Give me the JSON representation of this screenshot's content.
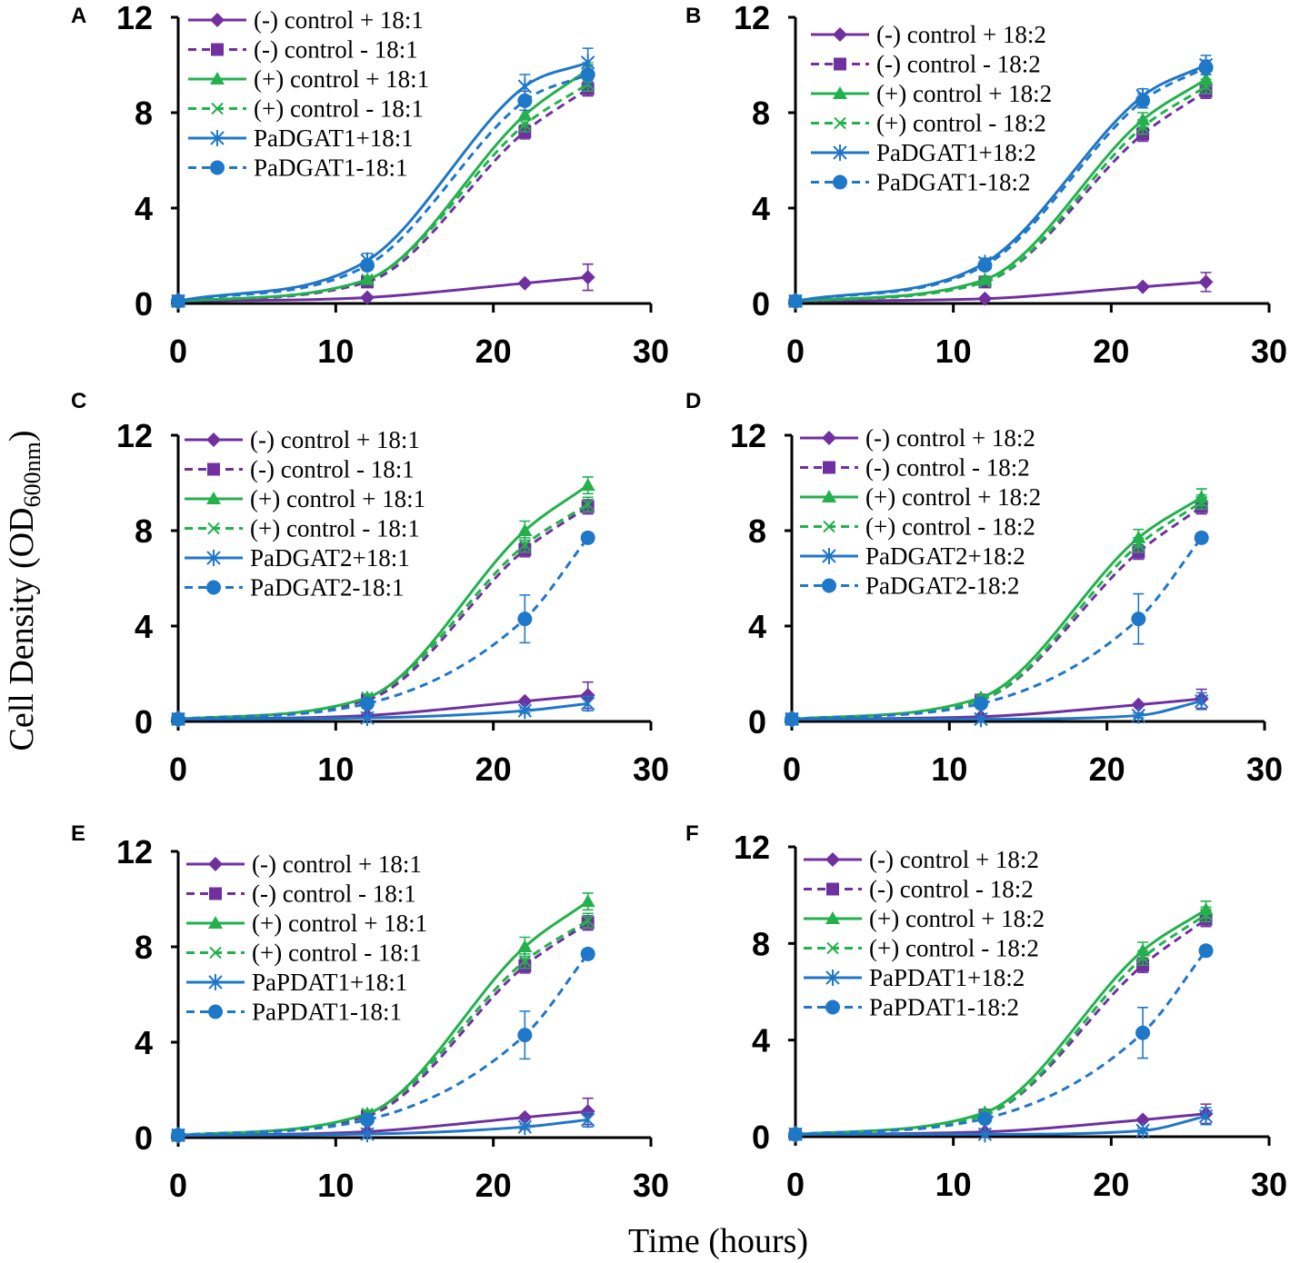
{
  "figure": {
    "ylabel_main": "Cell Density (OD",
    "ylabel_sub": "600nm",
    "ylabel_close": ")",
    "xlabel": "Time (hours)"
  },
  "colors": {
    "purple": "#7030A0",
    "green": "#22B14C",
    "blue": "#1F77C8"
  },
  "chart_data": [
    {
      "type": "line",
      "panel": "A",
      "xlim": [
        0,
        30
      ],
      "ylim": [
        0,
        12
      ],
      "xticks": [
        0,
        10,
        20,
        30
      ],
      "yticks": [
        0,
        4,
        8,
        12
      ],
      "x": [
        0,
        12,
        22,
        26
      ],
      "series": [
        {
          "name": "(-) control + 18:1",
          "color": "purple",
          "dash": false,
          "marker": "diamond",
          "values": [
            0.1,
            0.25,
            0.85,
            1.1
          ],
          "err": [
            0,
            0,
            0,
            0.55
          ]
        },
        {
          "name": "(-) control - 18:1",
          "color": "purple",
          "dash": true,
          "marker": "square",
          "values": [
            0.1,
            0.9,
            7.2,
            9.0
          ],
          "err": [
            0,
            0,
            0.3,
            0.3
          ]
        },
        {
          "name": "(+) control + 18:1",
          "color": "green",
          "dash": false,
          "marker": "triangle",
          "values": [
            0.1,
            1.0,
            7.9,
            9.8
          ],
          "err": [
            0,
            0,
            0.4,
            0.3
          ]
        },
        {
          "name": "(+) control - 18:1",
          "color": "green",
          "dash": true,
          "marker": "x",
          "values": [
            0.1,
            1.0,
            7.5,
            9.2
          ],
          "err": [
            0,
            0,
            0.3,
            0.3
          ]
        },
        {
          "name": "PaDGAT1+18:1",
          "color": "blue",
          "dash": false,
          "marker": "star",
          "values": [
            0.1,
            1.8,
            9.1,
            10.1
          ],
          "err": [
            0,
            0.3,
            0.5,
            0.6
          ]
        },
        {
          "name": "PaDGAT1-18:1",
          "color": "blue",
          "dash": true,
          "marker": "circle",
          "values": [
            0.1,
            1.6,
            8.5,
            9.6
          ],
          "err": [
            0,
            0.2,
            0.4,
            0.4
          ]
        }
      ]
    },
    {
      "type": "line",
      "panel": "B",
      "xlim": [
        0,
        30
      ],
      "ylim": [
        0,
        12
      ],
      "xticks": [
        0,
        10,
        20,
        30
      ],
      "yticks": [
        0,
        4,
        8,
        12
      ],
      "x": [
        0,
        12,
        22,
        26
      ],
      "series": [
        {
          "name": "(-) control + 18:2",
          "color": "purple",
          "dash": false,
          "marker": "diamond",
          "values": [
            0.1,
            0.2,
            0.7,
            0.9
          ],
          "err": [
            0,
            0,
            0,
            0.4
          ]
        },
        {
          "name": "(-) control - 18:2",
          "color": "purple",
          "dash": true,
          "marker": "square",
          "values": [
            0.1,
            0.9,
            7.1,
            8.9
          ],
          "err": [
            0,
            0,
            0.3,
            0.3
          ]
        },
        {
          "name": "(+) control + 18:2",
          "color": "green",
          "dash": false,
          "marker": "triangle",
          "values": [
            0.1,
            1.0,
            7.7,
            9.4
          ],
          "err": [
            0,
            0,
            0.3,
            0.3
          ]
        },
        {
          "name": "(+) control - 18:2",
          "color": "green",
          "dash": true,
          "marker": "x",
          "values": [
            0.1,
            0.9,
            7.4,
            9.1
          ],
          "err": [
            0,
            0,
            0.3,
            0.3
          ]
        },
        {
          "name": "PaDGAT1+18:2",
          "color": "blue",
          "dash": false,
          "marker": "star",
          "values": [
            0.1,
            1.7,
            8.7,
            10.0
          ],
          "err": [
            0,
            0.2,
            0.3,
            0.4
          ]
        },
        {
          "name": "PaDGAT1-18:2",
          "color": "blue",
          "dash": true,
          "marker": "circle",
          "values": [
            0.1,
            1.6,
            8.5,
            9.9
          ],
          "err": [
            0,
            0.2,
            0.3,
            0.3
          ]
        }
      ]
    },
    {
      "type": "line",
      "panel": "C",
      "xlim": [
        0,
        30
      ],
      "ylim": [
        0,
        12
      ],
      "xticks": [
        0,
        10,
        20,
        30
      ],
      "yticks": [
        0,
        4,
        8,
        12
      ],
      "x": [
        0,
        12,
        22,
        26
      ],
      "series": [
        {
          "name": "(-) control + 18:1",
          "color": "purple",
          "dash": false,
          "marker": "diamond",
          "values": [
            0.1,
            0.25,
            0.85,
            1.1
          ],
          "err": [
            0,
            0,
            0,
            0.55
          ]
        },
        {
          "name": "(-) control - 18:1",
          "color": "purple",
          "dash": true,
          "marker": "square",
          "values": [
            0.1,
            0.9,
            7.2,
            9.0
          ],
          "err": [
            0,
            0,
            0.3,
            0.3
          ]
        },
        {
          "name": "(+) control + 18:1",
          "color": "green",
          "dash": false,
          "marker": "triangle",
          "values": [
            0.1,
            1.0,
            8.0,
            9.9
          ],
          "err": [
            0,
            0,
            0.4,
            0.35
          ]
        },
        {
          "name": "(+) control - 18:1",
          "color": "green",
          "dash": true,
          "marker": "x",
          "values": [
            0.1,
            1.0,
            7.4,
            9.1
          ],
          "err": [
            0,
            0,
            0.3,
            0.3
          ]
        },
        {
          "name": "PaDGAT2+18:1",
          "color": "blue",
          "dash": false,
          "marker": "star",
          "values": [
            0.1,
            0.15,
            0.45,
            0.75
          ],
          "err": [
            0,
            0,
            0.1,
            0.3
          ]
        },
        {
          "name": "PaDGAT2-18:1",
          "color": "blue",
          "dash": true,
          "marker": "circle",
          "values": [
            0.1,
            0.75,
            4.3,
            7.7
          ],
          "err": [
            0,
            0.1,
            1.0,
            0.2
          ]
        }
      ]
    },
    {
      "type": "line",
      "panel": "D",
      "xlim": [
        0,
        30
      ],
      "ylim": [
        0,
        12
      ],
      "xticks": [
        0,
        10,
        20,
        30
      ],
      "yticks": [
        0,
        4,
        8,
        12
      ],
      "x": [
        0,
        12,
        22,
        26
      ],
      "series": [
        {
          "name": "(-) control + 18:2",
          "color": "purple",
          "dash": false,
          "marker": "diamond",
          "values": [
            0.1,
            0.2,
            0.7,
            0.95
          ],
          "err": [
            0,
            0,
            0,
            0.4
          ]
        },
        {
          "name": "(-) control - 18:2",
          "color": "purple",
          "dash": true,
          "marker": "square",
          "values": [
            0.1,
            0.9,
            7.1,
            9.0
          ],
          "err": [
            0,
            0,
            0.3,
            0.3
          ]
        },
        {
          "name": "(+) control + 18:2",
          "color": "green",
          "dash": false,
          "marker": "triangle",
          "values": [
            0.1,
            1.0,
            7.7,
            9.4
          ],
          "err": [
            0,
            0,
            0.35,
            0.35
          ]
        },
        {
          "name": "(+) control - 18:2",
          "color": "green",
          "dash": true,
          "marker": "x",
          "values": [
            0.1,
            0.9,
            7.4,
            9.2
          ],
          "err": [
            0,
            0,
            0.3,
            0.3
          ]
        },
        {
          "name": "PaDGAT2+18:2",
          "color": "blue",
          "dash": false,
          "marker": "star",
          "values": [
            0.1,
            0.1,
            0.25,
            0.85
          ],
          "err": [
            0,
            0,
            0.1,
            0.35
          ]
        },
        {
          "name": "PaDGAT2-18:2",
          "color": "blue",
          "dash": true,
          "marker": "circle",
          "values": [
            0.1,
            0.75,
            4.3,
            7.7
          ],
          "err": [
            0,
            0.1,
            1.05,
            0.2
          ]
        }
      ]
    },
    {
      "type": "line",
      "panel": "E",
      "xlim": [
        0,
        30
      ],
      "ylim": [
        0,
        12
      ],
      "xticks": [
        0,
        10,
        20,
        30
      ],
      "yticks": [
        0,
        4,
        8,
        12
      ],
      "x": [
        0,
        12,
        22,
        26
      ],
      "series": [
        {
          "name": "(-) control + 18:1",
          "color": "purple",
          "dash": false,
          "marker": "diamond",
          "values": [
            0.1,
            0.25,
            0.85,
            1.1
          ],
          "err": [
            0,
            0,
            0,
            0.55
          ]
        },
        {
          "name": "(-) control - 18:1",
          "color": "purple",
          "dash": true,
          "marker": "square",
          "values": [
            0.1,
            0.9,
            7.2,
            9.0
          ],
          "err": [
            0,
            0,
            0.3,
            0.3
          ]
        },
        {
          "name": "(+) control + 18:1",
          "color": "green",
          "dash": false,
          "marker": "triangle",
          "values": [
            0.1,
            1.0,
            8.0,
            9.9
          ],
          "err": [
            0,
            0,
            0.4,
            0.35
          ]
        },
        {
          "name": "(+) control - 18:1",
          "color": "green",
          "dash": true,
          "marker": "x",
          "values": [
            0.1,
            1.0,
            7.4,
            9.1
          ],
          "err": [
            0,
            0,
            0.3,
            0.3
          ]
        },
        {
          "name": "PaPDAT1+18:1",
          "color": "blue",
          "dash": false,
          "marker": "star",
          "values": [
            0.1,
            0.15,
            0.45,
            0.75
          ],
          "err": [
            0,
            0,
            0.1,
            0.3
          ]
        },
        {
          "name": "PaPDAT1-18:1",
          "color": "blue",
          "dash": true,
          "marker": "circle",
          "values": [
            0.1,
            0.75,
            4.3,
            7.7
          ],
          "err": [
            0,
            0.1,
            1.0,
            0.2
          ]
        }
      ]
    },
    {
      "type": "line",
      "panel": "F",
      "xlim": [
        0,
        30
      ],
      "ylim": [
        0,
        12
      ],
      "xticks": [
        0,
        10,
        20,
        30
      ],
      "yticks": [
        0,
        4,
        8,
        12
      ],
      "x": [
        0,
        12,
        22,
        26
      ],
      "series": [
        {
          "name": "(-) control + 18:2",
          "color": "purple",
          "dash": false,
          "marker": "diamond",
          "values": [
            0.1,
            0.2,
            0.7,
            0.95
          ],
          "err": [
            0,
            0,
            0,
            0.4
          ]
        },
        {
          "name": "(-) control - 18:2",
          "color": "purple",
          "dash": true,
          "marker": "square",
          "values": [
            0.1,
            0.9,
            7.1,
            9.0
          ],
          "err": [
            0,
            0,
            0.3,
            0.3
          ]
        },
        {
          "name": "(+) control + 18:2",
          "color": "green",
          "dash": false,
          "marker": "triangle",
          "values": [
            0.1,
            1.0,
            7.7,
            9.4
          ],
          "err": [
            0,
            0,
            0.35,
            0.35
          ]
        },
        {
          "name": "(+) control - 18:2",
          "color": "green",
          "dash": true,
          "marker": "x",
          "values": [
            0.1,
            0.9,
            7.4,
            9.2
          ],
          "err": [
            0,
            0,
            0.3,
            0.3
          ]
        },
        {
          "name": "PaPDAT1+18:2",
          "color": "blue",
          "dash": false,
          "marker": "star",
          "values": [
            0.1,
            0.1,
            0.25,
            0.85
          ],
          "err": [
            0,
            0,
            0.1,
            0.35
          ]
        },
        {
          "name": "PaPDAT1-18:2",
          "color": "blue",
          "dash": true,
          "marker": "circle",
          "values": [
            0.1,
            0.75,
            4.3,
            7.7
          ],
          "err": [
            0,
            0.1,
            1.05,
            0.2
          ]
        }
      ]
    }
  ]
}
